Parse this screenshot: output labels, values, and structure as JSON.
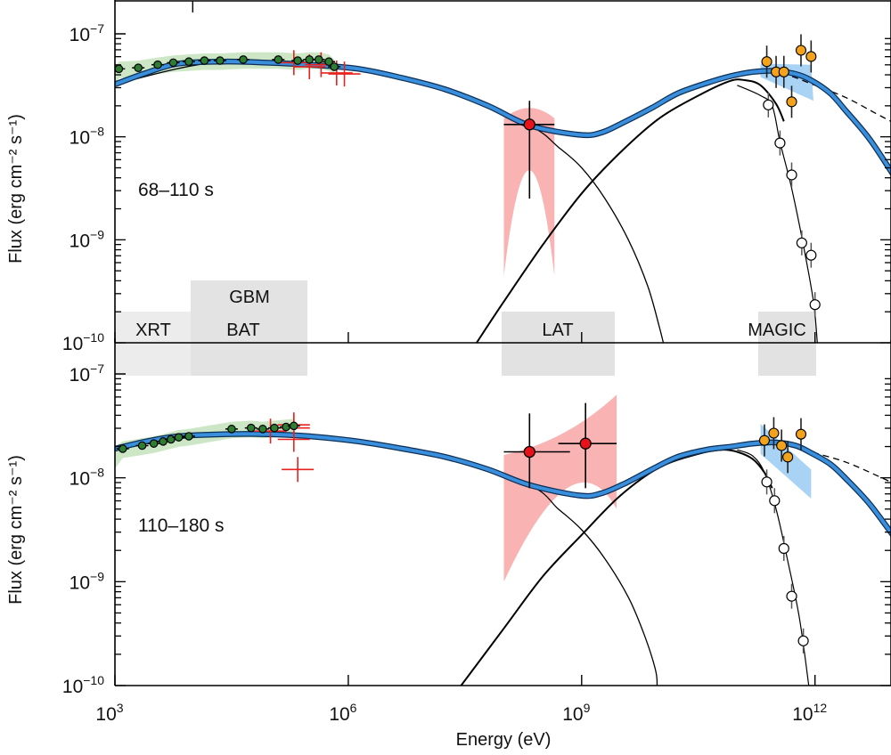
{
  "chart_data": {
    "type": "scatter",
    "xlabel": "Energy (eV)",
    "x_scale": "log",
    "xlim": [
      1000.0,
      10000000000000.0
    ],
    "x_ticks": [
      {
        "value": 3,
        "label": "10",
        "exp": "3"
      },
      {
        "value": 6,
        "label": "10",
        "exp": "6"
      },
      {
        "value": 9,
        "label": "10",
        "exp": "9"
      },
      {
        "value": 12,
        "label": "10",
        "exp": "12"
      }
    ],
    "panels": [
      {
        "label": "68–110 s",
        "ylabel": "Flux (erg cm⁻² s⁻¹)",
        "y_scale": "log",
        "ylim": [
          1e-10,
          1e-07
        ],
        "y_ticks": [
          {
            "value": -7,
            "label": "10",
            "exp": "−7"
          },
          {
            "value": -8,
            "label": "10",
            "exp": "−8"
          },
          {
            "value": -9,
            "label": "10",
            "exp": "−9"
          },
          {
            "value": -10,
            "label": "10",
            "exp": "−10"
          }
        ],
        "instrument_bands": [
          {
            "name": "XRT",
            "range_log_eV": [
              3.0,
              4.0
            ]
          },
          {
            "name": "BAT",
            "range_log_eV": [
              4.18,
              5.2
            ]
          },
          {
            "name": "GBM",
            "range_log_eV": [
              4.0,
              5.5
            ]
          },
          {
            "name": "LAT",
            "range_log_eV": [
              8.0,
              9.45
            ]
          },
          {
            "name": "MAGIC",
            "range_log_eV": [
              11.3,
              12.05
            ]
          }
        ],
        "total_model": [
          [
            3.0,
            -7.49
          ],
          [
            3.4,
            -7.38
          ],
          [
            3.81,
            -7.29
          ],
          [
            4.4,
            -7.27
          ],
          [
            4.96,
            -7.28
          ],
          [
            5.5,
            -7.3
          ],
          [
            6.13,
            -7.34
          ],
          [
            6.7,
            -7.43
          ],
          [
            7.25,
            -7.54
          ],
          [
            7.8,
            -7.7
          ],
          [
            8.33,
            -7.89
          ],
          [
            8.97,
            -7.98
          ],
          [
            9.25,
            -7.96
          ],
          [
            9.54,
            -7.86
          ],
          [
            9.9,
            -7.72
          ],
          [
            10.23,
            -7.58
          ],
          [
            10.6,
            -7.48
          ],
          [
            10.92,
            -7.41
          ],
          [
            11.2,
            -7.37
          ],
          [
            11.49,
            -7.36
          ],
          [
            11.75,
            -7.39
          ],
          [
            11.95,
            -7.45
          ],
          [
            12.2,
            -7.58
          ],
          [
            12.4,
            -7.75
          ],
          [
            12.7,
            -8.02
          ],
          [
            13.0,
            -8.36
          ]
        ],
        "synchrotron_model": [
          [
            3.0,
            -7.49
          ],
          [
            4.4,
            -7.27
          ],
          [
            6.13,
            -7.34
          ],
          [
            7.25,
            -7.54
          ],
          [
            8.33,
            -7.89
          ],
          [
            8.7,
            -8.1
          ],
          [
            9.0,
            -8.3
          ],
          [
            9.3,
            -8.6
          ],
          [
            9.6,
            -9.0
          ],
          [
            9.85,
            -9.45
          ],
          [
            10.0,
            -9.85
          ],
          [
            10.05,
            -10.0
          ]
        ],
        "ic_model": [
          [
            7.65,
            -10.0
          ],
          [
            8.0,
            -9.6
          ],
          [
            8.5,
            -9.05
          ],
          [
            9.0,
            -8.55
          ],
          [
            9.5,
            -8.15
          ],
          [
            10.0,
            -7.82
          ],
          [
            10.5,
            -7.6
          ],
          [
            10.9,
            -7.46
          ],
          [
            11.1,
            -7.45
          ],
          [
            11.3,
            -7.5
          ],
          [
            11.5,
            -7.68
          ],
          [
            11.6,
            -7.85
          ]
        ],
        "dashed_model": [
          [
            11.3,
            -7.38
          ],
          [
            11.6,
            -7.39
          ],
          [
            12.0,
            -7.5
          ],
          [
            12.4,
            -7.62
          ],
          [
            12.8,
            -7.78
          ],
          [
            13.0,
            -7.86
          ]
        ],
        "xrt_points": [
          [
            3.05,
            -7.34
          ],
          [
            3.3,
            -7.33
          ],
          [
            3.55,
            -7.3
          ],
          [
            3.75,
            -7.28
          ],
          [
            3.95,
            -7.27
          ],
          [
            4.15,
            -7.26
          ],
          [
            4.35,
            -7.26
          ],
          [
            4.65,
            -7.25
          ],
          [
            5.1,
            -7.25
          ],
          [
            5.35,
            -7.26
          ],
          [
            5.5,
            -7.25
          ],
          [
            5.62,
            -7.25
          ],
          [
            5.75,
            -7.27
          ],
          [
            5.82,
            -7.32
          ]
        ],
        "gbm_points": [
          [
            5.3,
            -7.28
          ],
          [
            5.5,
            -7.32
          ],
          [
            5.65,
            -7.3
          ],
          [
            5.85,
            -7.38
          ],
          [
            5.95,
            -7.39
          ]
        ],
        "lat_points": [
          {
            "logE": 8.33,
            "logF": -7.88,
            "xerr": [
              8.0,
              8.65
            ],
            "yerr": [
              -8.6,
              -7.65
            ]
          }
        ],
        "magic_observed": [
          [
            11.38,
            -7.27
          ],
          [
            11.5,
            -7.37
          ],
          [
            11.6,
            -7.37
          ],
          [
            11.7,
            -7.66
          ],
          [
            11.82,
            -7.16
          ],
          [
            11.95,
            -7.22
          ]
        ],
        "magic_intrinsic_deabsorbed_fit": [
          [
            11.38,
            -7.33
          ],
          [
            11.5,
            -7.36
          ],
          [
            11.6,
            -7.36
          ],
          [
            11.82,
            -7.42
          ],
          [
            11.95,
            -7.47
          ]
        ],
        "magic_absorbed": [
          [
            11.4,
            -7.69
          ],
          [
            11.55,
            -8.06
          ],
          [
            11.7,
            -8.37
          ],
          [
            11.83,
            -9.03
          ],
          [
            11.95,
            -9.15
          ],
          [
            12.0,
            -9.63
          ]
        ],
        "magic_absorbed_fit": [
          [
            11.0,
            -7.5
          ],
          [
            11.3,
            -7.6
          ],
          [
            11.45,
            -7.7
          ],
          [
            11.55,
            -8.05
          ],
          [
            11.7,
            -8.5
          ],
          [
            11.85,
            -9.05
          ],
          [
            11.98,
            -9.6
          ],
          [
            12.03,
            -10.0
          ]
        ]
      },
      {
        "label": "110–180 s",
        "ylabel": "Flux (erg cm⁻² s⁻¹)",
        "y_scale": "log",
        "ylim": [
          1e-10,
          1e-07
        ],
        "y_ticks": [
          {
            "value": -7,
            "label": "10",
            "exp": "−7"
          },
          {
            "value": -8,
            "label": "10",
            "exp": "−8"
          },
          {
            "value": -9,
            "label": "10",
            "exp": "−9"
          },
          {
            "value": -10,
            "label": "10",
            "exp": "−10"
          }
        ],
        "total_model": [
          [
            3.0,
            -7.72
          ],
          [
            3.4,
            -7.65
          ],
          [
            3.81,
            -7.6
          ],
          [
            4.4,
            -7.58
          ],
          [
            4.96,
            -7.58
          ],
          [
            5.5,
            -7.6
          ],
          [
            6.13,
            -7.65
          ],
          [
            6.7,
            -7.72
          ],
          [
            7.25,
            -7.8
          ],
          [
            7.8,
            -7.92
          ],
          [
            8.33,
            -8.07
          ],
          [
            8.97,
            -8.17
          ],
          [
            9.25,
            -8.15
          ],
          [
            9.54,
            -8.06
          ],
          [
            9.9,
            -7.92
          ],
          [
            10.23,
            -7.8
          ],
          [
            10.6,
            -7.73
          ],
          [
            10.92,
            -7.7
          ],
          [
            11.2,
            -7.67
          ],
          [
            11.49,
            -7.66
          ],
          [
            11.75,
            -7.69
          ],
          [
            11.95,
            -7.76
          ],
          [
            12.2,
            -7.87
          ],
          [
            12.4,
            -8.01
          ],
          [
            12.7,
            -8.25
          ],
          [
            13.0,
            -8.55
          ]
        ],
        "synchrotron_model": [
          [
            3.0,
            -7.72
          ],
          [
            4.4,
            -7.58
          ],
          [
            6.13,
            -7.65
          ],
          [
            7.25,
            -7.8
          ],
          [
            8.33,
            -8.07
          ],
          [
            8.7,
            -8.3
          ],
          [
            9.0,
            -8.5
          ],
          [
            9.3,
            -8.78
          ],
          [
            9.6,
            -9.15
          ],
          [
            9.8,
            -9.5
          ],
          [
            9.95,
            -9.85
          ],
          [
            9.97,
            -10.0
          ]
        ],
        "ic_model": [
          [
            7.45,
            -10.0
          ],
          [
            8.0,
            -9.45
          ],
          [
            8.5,
            -8.95
          ],
          [
            9.0,
            -8.55
          ],
          [
            9.5,
            -8.17
          ],
          [
            10.0,
            -7.9
          ],
          [
            10.5,
            -7.77
          ],
          [
            10.8,
            -7.73
          ],
          [
            11.0,
            -7.75
          ],
          [
            11.2,
            -7.82
          ],
          [
            11.35,
            -7.95
          ],
          [
            11.45,
            -8.1
          ]
        ],
        "dashed_model": [
          [
            11.3,
            -7.66
          ],
          [
            11.6,
            -7.67
          ],
          [
            12.0,
            -7.76
          ],
          [
            12.4,
            -7.85
          ],
          [
            12.8,
            -7.98
          ],
          [
            13.0,
            -8.05
          ]
        ],
        "xrt_points": [
          [
            3.1,
            -7.72
          ],
          [
            3.35,
            -7.69
          ],
          [
            3.5,
            -7.67
          ],
          [
            3.62,
            -7.65
          ],
          [
            3.72,
            -7.63
          ],
          [
            3.82,
            -7.61
          ],
          [
            3.95,
            -7.6
          ],
          [
            4.5,
            -7.53
          ],
          [
            4.75,
            -7.52
          ],
          [
            4.9,
            -7.53
          ],
          [
            5.05,
            -7.52
          ],
          [
            5.2,
            -7.51
          ],
          [
            5.3,
            -7.5
          ]
        ],
        "gbm_points": [
          [
            5.0,
            -7.55
          ],
          [
            5.3,
            -7.63
          ],
          [
            5.3,
            -7.49
          ],
          [
            5.3,
            -7.52
          ],
          [
            5.35,
            -7.92
          ]
        ],
        "lat_points": [
          {
            "logE": 8.33,
            "logF": -7.75,
            "xerr": [
              8.0,
              8.85
            ],
            "yerr": [
              -8.1,
              -7.38
            ]
          },
          {
            "logE": 9.05,
            "logF": -7.67,
            "xerr": [
              8.7,
              9.45
            ],
            "yerr": [
              -8.1,
              -7.28
            ]
          }
        ],
        "magic_observed": [
          [
            11.35,
            -7.64
          ],
          [
            11.47,
            -7.57
          ],
          [
            11.57,
            -7.69
          ],
          [
            11.65,
            -7.8
          ],
          [
            11.82,
            -7.58
          ]
        ],
        "magic_intrinsic_fit": [
          [
            11.3,
            -7.58
          ],
          [
            11.5,
            -7.66
          ],
          [
            11.7,
            -7.77
          ],
          [
            11.85,
            -7.86
          ]
        ],
        "magic_absorbed": [
          [
            11.38,
            -8.04
          ],
          [
            11.48,
            -8.22
          ],
          [
            11.6,
            -8.68
          ],
          [
            11.7,
            -9.14
          ],
          [
            11.85,
            -9.57
          ]
        ],
        "magic_absorbed_fit": [
          [
            11.0,
            -7.73
          ],
          [
            11.2,
            -7.79
          ],
          [
            11.35,
            -7.95
          ],
          [
            11.5,
            -8.3
          ],
          [
            11.65,
            -8.8
          ],
          [
            11.8,
            -9.35
          ],
          [
            11.92,
            -10.0
          ]
        ]
      }
    ],
    "legend": "none",
    "grid": false
  }
}
